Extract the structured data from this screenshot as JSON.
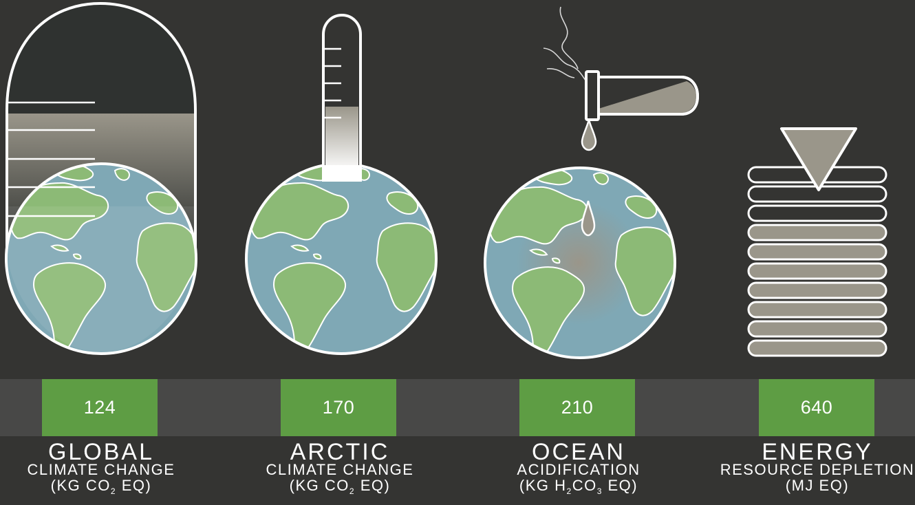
{
  "colors": {
    "background": "#343432",
    "band": "#484847",
    "value_box": "#5e9d44",
    "ocean": "#7fa8b5",
    "land": "#8cba76",
    "fill_gray": "#9a968a",
    "outline": "#ffffff"
  },
  "indicators": [
    {
      "icon": "glass-beaker-over-globe-icon",
      "value": "124",
      "title": "GLOBAL",
      "subtitle": "CLIMATE CHANGE",
      "unit_pre": "(KG CO",
      "unit_sub1": "2",
      "unit_mid": "",
      "unit_sub2": "",
      "unit_post": " EQ)"
    },
    {
      "icon": "thermometer-on-globe-icon",
      "value": "170",
      "title": "ARCTIC",
      "subtitle": "CLIMATE CHANGE",
      "unit_pre": "(KG CO",
      "unit_sub1": "2",
      "unit_mid": "",
      "unit_sub2": "",
      "unit_post": " EQ)"
    },
    {
      "icon": "test-tube-dripping-on-globe-icon",
      "value": "210",
      "title": "OCEAN",
      "subtitle": "ACIDIFICATION",
      "unit_pre": "(KG H",
      "unit_sub1": "2",
      "unit_mid": "CO",
      "unit_sub2": "3",
      "unit_post": " EQ)"
    },
    {
      "icon": "energy-stack-gauge-icon",
      "value": "640",
      "title": "ENERGY",
      "subtitle": "RESOURCE DEPLETION",
      "unit_pre": "(MJ EQ)",
      "unit_sub1": "",
      "unit_mid": "",
      "unit_sub2": "",
      "unit_post": ""
    }
  ]
}
